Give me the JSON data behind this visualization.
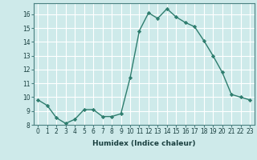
{
  "x": [
    0,
    1,
    2,
    3,
    4,
    5,
    6,
    7,
    8,
    9,
    10,
    11,
    12,
    13,
    14,
    15,
    16,
    17,
    18,
    19,
    20,
    21,
    22,
    23
  ],
  "y": [
    9.8,
    9.4,
    8.5,
    8.1,
    8.4,
    9.1,
    9.1,
    8.6,
    8.6,
    8.8,
    11.4,
    14.8,
    16.1,
    15.7,
    16.4,
    15.8,
    15.4,
    15.1,
    14.1,
    13.0,
    11.8,
    10.2,
    10.0,
    9.8
  ],
  "line_color": "#2e7d6e",
  "marker": "D",
  "marker_size": 2.2,
  "bg_color": "#ceeaea",
  "grid_color": "#ffffff",
  "xlabel": "Humidex (Indice chaleur)",
  "ylim": [
    8,
    16.8
  ],
  "xlim": [
    -0.5,
    23.5
  ],
  "yticks": [
    8,
    9,
    10,
    11,
    12,
    13,
    14,
    15,
    16
  ],
  "xticks": [
    0,
    1,
    2,
    3,
    4,
    5,
    6,
    7,
    8,
    9,
    10,
    11,
    12,
    13,
    14,
    15,
    16,
    17,
    18,
    19,
    20,
    21,
    22,
    23
  ],
  "tick_fontsize": 5.5,
  "xlabel_fontsize": 6.5,
  "xlabel_color": "#1a4040",
  "spine_color": "#4a8080",
  "line_width": 1.0
}
